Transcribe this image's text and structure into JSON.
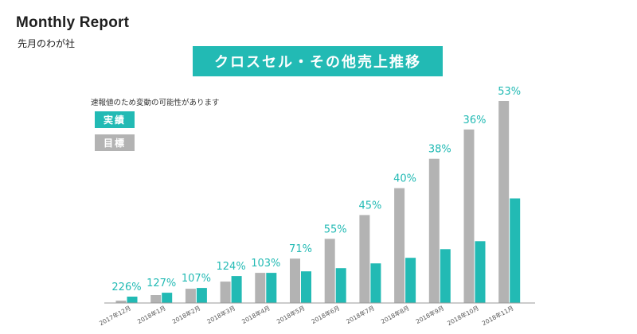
{
  "header": {
    "title": "Monthly Report",
    "subtitle": "先月のわが社"
  },
  "chart_data": {
    "type": "bar",
    "title": "クロスセル・その他売上推移",
    "note": "速報値のため変動の可能性があります",
    "categories": [
      "2017年12月",
      "2018年1月",
      "2018年2月",
      "2018年3月",
      "2018年4月",
      "2018年5月",
      "2018年6月",
      "2018年7月",
      "2018年8月",
      "2018年9月",
      "2018年10月",
      "2018年11月"
    ],
    "series": [
      {
        "name": "実績",
        "color": "#22bab4",
        "values": [
          8,
          13,
          19,
          34,
          38,
          40,
          44,
          50,
          57,
          68,
          78,
          132
        ]
      },
      {
        "name": "目標",
        "color": "#b3b3b3",
        "values": [
          3,
          10,
          18,
          27,
          38,
          56,
          81,
          111,
          145,
          182,
          219,
          255
        ]
      }
    ],
    "data_labels": [
      "226%",
      "127%",
      "107%",
      "124%",
      "103%",
      "71%",
      "55%",
      "45%",
      "40%",
      "38%",
      "36%",
      "53%"
    ],
    "ylim": [
      0,
      260
    ],
    "grid": false,
    "legend": "top-left"
  },
  "colors": {
    "accent": "#22bab4",
    "target": "#b3b3b3",
    "axis": "#9a9a9a"
  }
}
